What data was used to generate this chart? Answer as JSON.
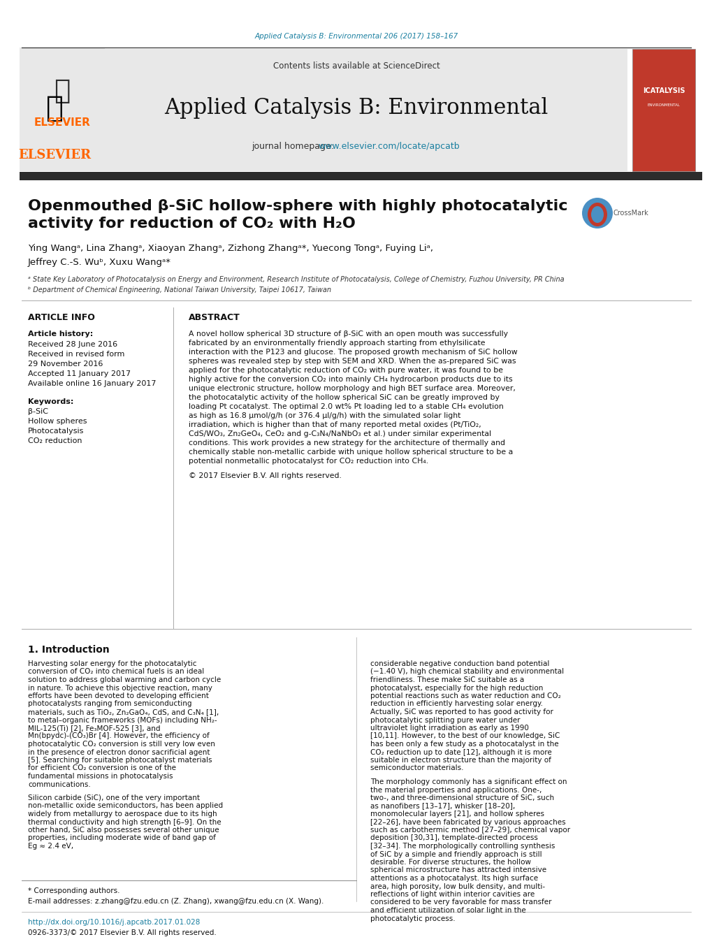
{
  "background_color": "#ffffff",
  "top_citation": "Applied Catalysis B: Environmental 206 (2017) 158–167",
  "top_citation_color": "#1a7fa0",
  "header_bg": "#e8e8e8",
  "journal_title": "Applied Catalysis B: Environmental",
  "contents_line": "Contents lists available at ScienceDirect",
  "sciencedirect_color": "#1a7fa0",
  "journal_homepage_text": "journal homepage: ",
  "journal_homepage_url": "www.elsevier.com/locate/apcatb",
  "journal_homepage_url_color": "#1a7fa0",
  "elsevier_color": "#ff6600",
  "dark_bar_color": "#2c2c2c",
  "article_title_line1": "Openmouthed β-SiC hollow-sphere with highly photocatalytic",
  "article_title_line2": "activity for reduction of CO₂ with H₂O",
  "article_title_fontsize": 16,
  "authors": "Ying Wangᵃ, Lina Zhangᵃ, Xiaoyan Zhangᵃ, Zizhong Zhangᵃ*, Yuecong Tongᵃ, Fuying Liᵃ,",
  "authors_line2": "Jeffrey C.-S. Wuᵇ, Xuxu Wangᵃ*",
  "affil_a": "ᵃ State Key Laboratory of Photocatalysis on Energy and Environment, Research Institute of Photocatalysis, College of Chemistry, Fuzhou University, PR China",
  "affil_b": "ᵇ Department of Chemical Engineering, National Taiwan University, Taipei 10617, Taiwan",
  "article_info_title": "ARTICLE INFO",
  "abstract_title": "ABSTRACT",
  "article_history_label": "Article history:",
  "received": "Received 28 June 2016",
  "received_revised": "Received in revised form",
  "received_revised2": "29 November 2016",
  "accepted": "Accepted 11 January 2017",
  "available": "Available online 16 January 2017",
  "keywords_label": "Keywords:",
  "keyword1": "β-SiC",
  "keyword2": "Hollow spheres",
  "keyword3": "Photocatalysis",
  "keyword4": "CO₂ reduction",
  "abstract_text": "A novel hollow spherical 3D structure of β-SiC with an open mouth was successfully fabricated by an environmentally friendly approach starting from ethylsilicate interaction with the P123 and glucose. The proposed growth mechanism of SiC hollow spheres was revealed step by step with SEM and XRD. When the as-prepared SiC was applied for the photocatalytic reduction of CO₂ with pure water, it was found to be highly active for the conversion CO₂ into mainly CH₄ hydrocarbon products due to its unique electronic structure, hollow morphology and high BET surface area. Moreover, the photocatalytic activity of the hollow spherical SiC can be greatly improved by loading Pt cocatalyst. The optimal 2.0 wt% Pt loading led to a stable CH₄ evolution as high as 16.8 μmol/g/h (or 376.4 μl/g/h) with the simulated solar light irradiation, which is higher than that of many reported metal oxides (Pt/TiO₂, CdS/WO₃, Zn₂GeO₄, CeO₂ and g-C₃N₄/NaNbO₃ et al.) under similar experimental conditions. This work provides a new strategy for the architecture of thermally and chemically stable non-metallic carbide with unique hollow spherical structure to be a potential nonmetallic photocatalyst for CO₂ reduction into CH₄.",
  "copyright": "© 2017 Elsevier B.V. All rights reserved.",
  "intro_title": "1. Introduction",
  "intro_col1_para1": "Harvesting solar energy for the photocatalytic conversion of CO₂ into chemical fuels is an ideal solution to address global warming and carbon cycle in nature. To achieve this objective reaction, many efforts have been devoted to developing efficient photocatalysts ranging from semiconducting materials, such as TiO₂, Zn₂GaO₄, CdS, and C₃N₄ [1], to metal–organic frameworks (MOFs) including NH₂-MIL-125(Ti) [2], Fe₃MOF-525 [3], and Mn(bpydc)-(CO₃)Br [4]. However, the efficiency of photocatalytic CO₂ conversion is still very low even in the presence of electron donor sacrificial agent [5]. Searching for suitable photocatalyst materials for efficient CO₂ conversion is one of the fundamental missions in photocatalysis communications.",
  "intro_col1_para2": "Silicon carbide (SiC), one of the very important non-metallic oxide semiconductors, has been applied widely from metallurgy to aerospace due to its high thermal conductivity and high strength [6–9]. On the other hand, SiC also possesses several other unique properties, including moderate wide of band gap of Eg ≈ 2.4 eV,",
  "intro_col2_para1": "considerable negative conduction band potential (−1.40 V), high chemical stability and environmental friendliness. These make SiC suitable as a photocatalyst, especially for the high reduction potential reactions such as water reduction and CO₂ reduction in efficiently harvesting solar energy. Actually, SiC was reported to has good activity for photocatalytic splitting pure water under ultraviolet light irradiation as early as 1990 [10,11]. However, to the best of our knowledge, SiC has been only a few study as a photocatalyst in the CO₂ reduction up to date [12], although it is more suitable in electron structure than the majority of semiconductor materials.",
  "intro_col2_para2": "The morphology commonly has a significant effect on the material properties and applications. One-, two-, and three-dimensional structure of SiC, such as nanofibers [13–17], whisker [18–20], monomolecular layers [21], and hollow spheres [22–26], have been fabricated by various approaches such as carbothermic method [27–29], chemical vapor deposition [30,31], template-directed process [32–34]. The morphologically controlling synthesis of SiC by a simple and friendly approach is still desirable. For diverse structures, the hollow spherical microstructure has attracted intensive attentions as a photocatalyst. Its high surface area, high porosity, low bulk density, and multi-reflections of light within interior cavities are considered to be very favorable for mass transfer and efficient utilization of solar light in the photocatalytic process.",
  "footnote_corr": "* Corresponding authors.",
  "footnote_email": "E-mail addresses: z.zhang@fzu.edu.cn (Z. Zhang), xwang@fzu.edu.cn (X. Wang).",
  "footer_doi": "http://dx.doi.org/10.1016/j.apcatb.2017.01.028",
  "footer_issn": "0926-3373/© 2017 Elsevier B.V. All rights reserved."
}
